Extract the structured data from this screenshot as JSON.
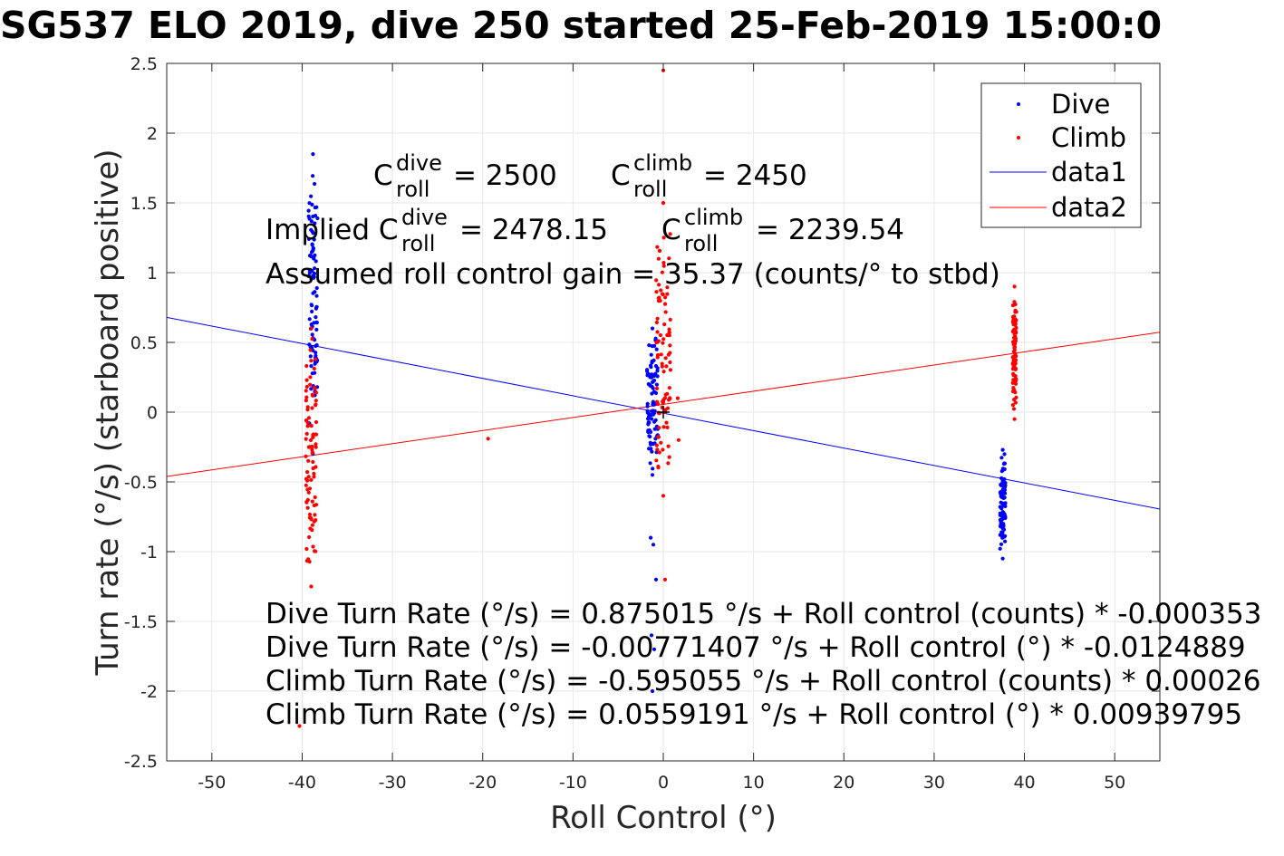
{
  "chart_data": {
    "type": "scatter",
    "title": "SG537 ELO 2019, dive 250 started 25-Feb-2019 15:00:0",
    "xlabel": "Roll Control (°)",
    "ylabel": "Turn rate (°/s) (starboard positive)",
    "xlim": [
      -55,
      55
    ],
    "ylim": [
      -2.5,
      2.5
    ],
    "xticks": [
      -50,
      -40,
      -30,
      -20,
      -10,
      0,
      10,
      20,
      30,
      40,
      50
    ],
    "yticks": [
      -2.5,
      -2,
      -1.5,
      -1,
      -0.5,
      0,
      0.5,
      1,
      1.5,
      2,
      2.5
    ],
    "grid": true,
    "legend_position": "top-right",
    "colors": {
      "dive": "#0000ff",
      "climb": "#ff0000",
      "text": "#000000",
      "grid": "#e6e6e6"
    },
    "legend": [
      "Dive",
      "Climb",
      "data1",
      "data2"
    ],
    "series": [
      {
        "name": "Dive",
        "kind": "scatter",
        "color": "#0000ff",
        "clusters": [
          {
            "x": -38.8,
            "xspread": 0.5,
            "ymin": -0.3,
            "ymax": 1.85
          },
          {
            "x": -1.2,
            "xspread": 0.6,
            "ymin": -0.45,
            "ymax": 0.6
          },
          {
            "x": 37.6,
            "xspread": 0.3,
            "ymin": -1.05,
            "ymax": -0.27
          }
        ],
        "points": [
          [
            -1.2,
            -2.0
          ],
          [
            -1.3,
            -1.6
          ],
          [
            -1.0,
            -1.7
          ],
          [
            -0.8,
            -1.2
          ],
          [
            -1.4,
            -0.9
          ],
          [
            -1.1,
            -0.95
          ]
        ]
      },
      {
        "name": "Climb",
        "kind": "scatter",
        "color": "#ff0000",
        "clusters": [
          {
            "x": -39.0,
            "xspread": 0.6,
            "ymin": -1.25,
            "ymax": 0.6
          },
          {
            "x": 0.0,
            "xspread": 0.8,
            "ymin": -0.6,
            "ymax": 1.5
          },
          {
            "x": 38.9,
            "xspread": 0.2,
            "ymin": -0.05,
            "ymax": 0.9
          }
        ],
        "points": [
          [
            0.0,
            2.45
          ],
          [
            -19.4,
            -0.19
          ],
          [
            -40.3,
            -2.25
          ],
          [
            0.2,
            -1.2
          ],
          [
            1.6,
            0.1
          ],
          [
            1.7,
            -0.2
          ]
        ]
      },
      {
        "name": "data1",
        "kind": "line",
        "color": "#0000ff",
        "x": [
          -55,
          55
        ],
        "y": [
          0.6792,
          -0.6946
        ]
      },
      {
        "name": "data2",
        "kind": "line",
        "color": "#ff0000",
        "x": [
          -55,
          55
        ],
        "y": [
          -0.461,
          0.5728
        ]
      }
    ],
    "annotations": {
      "c_roll_dive": {
        "base": "C",
        "sup": "dive",
        "sub": "roll",
        "value": "= 2500"
      },
      "c_roll_climb": {
        "base": "C",
        "sup": "climb",
        "sub": "roll",
        "value": "= 2450"
      },
      "implied_dive": {
        "prefix": "Implied C",
        "sup": "dive",
        "sub": "roll",
        "value": "= 2478.15"
      },
      "implied_climb": {
        "base": "C",
        "sup": "climb",
        "sub": "roll",
        "value": "= 2239.54"
      },
      "gain": "Assumed roll control gain = 35.37 (counts/° to stbd)",
      "equations": [
        "Dive Turn Rate (°/s) = 0.875015 °/s + Roll control (counts) * -0.000353",
        "Dive Turn Rate (°/s) = -0.00771407 °/s + Roll control (°) * -0.0124889",
        "Climb Turn Rate (°/s) = -0.595055 °/s + Roll control (counts) * 0.00026",
        "Climb Turn Rate (°/s) = 0.0559191 °/s + Roll control (°) * 0.00939795"
      ]
    }
  }
}
